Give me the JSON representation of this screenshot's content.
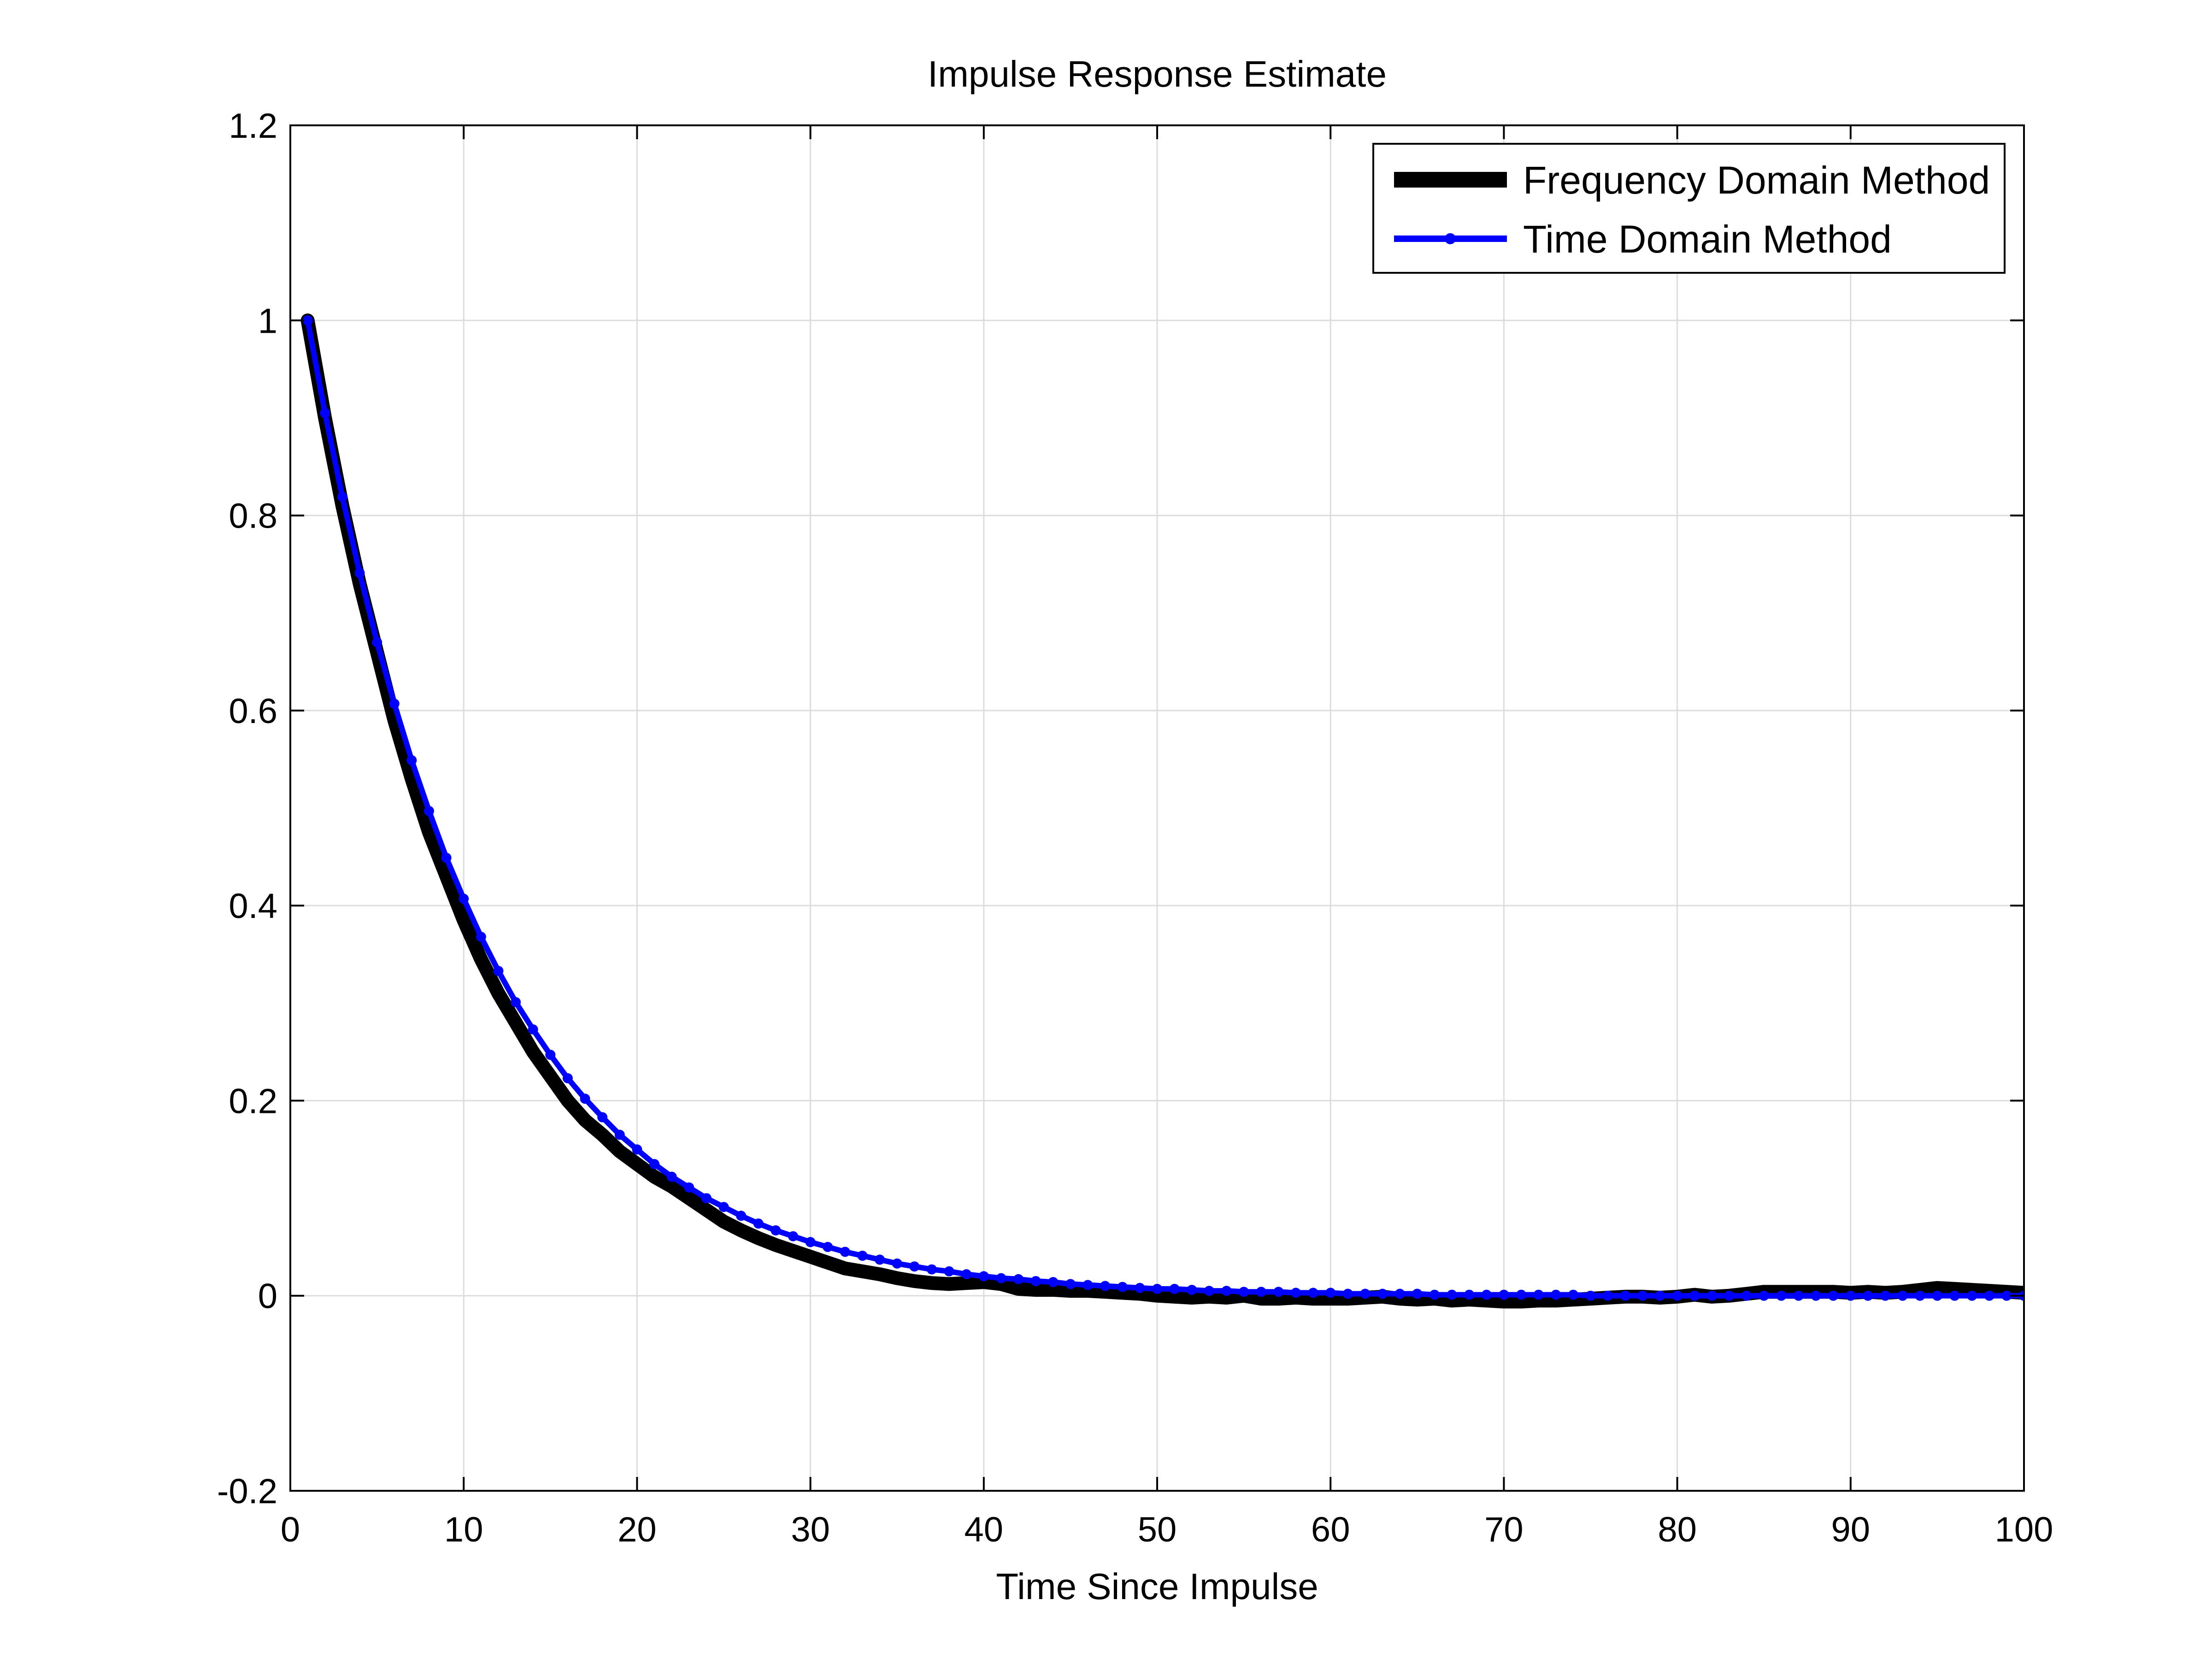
{
  "chart_data": {
    "type": "line",
    "title": "Impulse Response Estimate",
    "xlabel": "Time Since Impulse",
    "ylabel": "",
    "xlim": [
      0,
      100
    ],
    "ylim": [
      -0.2,
      1.2
    ],
    "xticks": [
      0,
      10,
      20,
      30,
      40,
      50,
      60,
      70,
      80,
      90,
      100
    ],
    "yticks": [
      -0.2,
      0,
      0.2,
      0.4,
      0.6,
      0.8,
      1,
      1.2
    ],
    "xtick_labels": [
      "0",
      "10",
      "20",
      "30",
      "40",
      "50",
      "60",
      "70",
      "80",
      "90",
      "100"
    ],
    "ytick_labels": [
      "-0.2",
      "0",
      "0.2",
      "0.4",
      "0.6",
      "0.8",
      "1",
      "1.2"
    ],
    "grid": true,
    "legend_position": "top-right",
    "series": [
      {
        "name": "Frequency Domain Method",
        "color": "#000000",
        "style": "thick-line",
        "x": [
          1,
          2,
          3,
          4,
          5,
          6,
          7,
          8,
          9,
          10,
          11,
          12,
          13,
          14,
          15,
          16,
          17,
          18,
          19,
          20,
          21,
          22,
          23,
          24,
          25,
          26,
          27,
          28,
          29,
          30,
          31,
          32,
          33,
          34,
          35,
          36,
          37,
          38,
          39,
          40,
          41,
          42,
          43,
          44,
          45,
          46,
          47,
          48,
          49,
          50,
          51,
          52,
          53,
          54,
          55,
          56,
          57,
          58,
          59,
          60,
          61,
          62,
          63,
          64,
          65,
          66,
          67,
          68,
          69,
          70,
          71,
          72,
          73,
          74,
          75,
          76,
          77,
          78,
          79,
          80,
          81,
          82,
          83,
          84,
          85,
          86,
          87,
          88,
          89,
          90,
          91,
          92,
          93,
          94,
          95,
          96,
          97,
          98,
          99,
          100
        ],
        "y": [
          1.0,
          0.9,
          0.81,
          0.73,
          0.66,
          0.59,
          0.53,
          0.475,
          0.43,
          0.385,
          0.345,
          0.31,
          0.28,
          0.25,
          0.225,
          0.2,
          0.18,
          0.165,
          0.148,
          0.135,
          0.122,
          0.112,
          0.1,
          0.088,
          0.076,
          0.067,
          0.059,
          0.052,
          0.046,
          0.04,
          0.034,
          0.028,
          0.025,
          0.022,
          0.018,
          0.015,
          0.013,
          0.012,
          0.013,
          0.014,
          0.012,
          0.007,
          0.006,
          0.006,
          0.005,
          0.005,
          0.004,
          0.003,
          0.002,
          0.0,
          -0.001,
          -0.002,
          -0.001,
          -0.002,
          0.0,
          -0.003,
          -0.003,
          -0.002,
          -0.003,
          -0.003,
          -0.003,
          -0.002,
          -0.001,
          -0.003,
          -0.004,
          -0.003,
          -0.005,
          -0.004,
          -0.005,
          -0.006,
          -0.006,
          -0.005,
          -0.005,
          -0.004,
          -0.003,
          -0.002,
          -0.001,
          -0.001,
          -0.002,
          -0.001,
          0.001,
          -0.001,
          0.0,
          0.002,
          0.004,
          0.004,
          0.004,
          0.004,
          0.004,
          0.003,
          0.004,
          0.003,
          0.004,
          0.006,
          0.008,
          0.007,
          0.006,
          0.005,
          0.004,
          0.003
        ]
      },
      {
        "name": "Time Domain Method",
        "color": "#0000ff",
        "style": "line-with-dots",
        "x": [
          1,
          2,
          3,
          4,
          5,
          6,
          7,
          8,
          9,
          10,
          11,
          12,
          13,
          14,
          15,
          16,
          17,
          18,
          19,
          20,
          21,
          22,
          23,
          24,
          25,
          26,
          27,
          28,
          29,
          30,
          31,
          32,
          33,
          34,
          35,
          36,
          37,
          38,
          39,
          40,
          41,
          42,
          43,
          44,
          45,
          46,
          47,
          48,
          49,
          50,
          51,
          52,
          53,
          54,
          55,
          56,
          57,
          58,
          59,
          60,
          61,
          62,
          63,
          64,
          65,
          66,
          67,
          68,
          69,
          70,
          71,
          72,
          73,
          74,
          75,
          76,
          77,
          78,
          79,
          80,
          81,
          82,
          83,
          84,
          85,
          86,
          87,
          88,
          89,
          90,
          91,
          92,
          93,
          94,
          95,
          96,
          97,
          98,
          99,
          100
        ],
        "y": [
          1.0,
          0.905,
          0.819,
          0.741,
          0.67,
          0.607,
          0.549,
          0.497,
          0.449,
          0.407,
          0.368,
          0.333,
          0.301,
          0.273,
          0.247,
          0.223,
          0.202,
          0.183,
          0.165,
          0.15,
          0.135,
          0.122,
          0.111,
          0.1,
          0.091,
          0.082,
          0.074,
          0.067,
          0.061,
          0.055,
          0.05,
          0.045,
          0.041,
          0.037,
          0.033,
          0.03,
          0.027,
          0.025,
          0.022,
          0.02,
          0.018,
          0.017,
          0.015,
          0.014,
          0.012,
          0.011,
          0.01,
          0.009,
          0.008,
          0.007,
          0.007,
          0.006,
          0.005,
          0.005,
          0.004,
          0.004,
          0.004,
          0.003,
          0.003,
          0.003,
          0.002,
          0.002,
          0.002,
          0.002,
          0.002,
          0.001,
          0.001,
          0.001,
          0.001,
          0.001,
          0.001,
          0.001,
          0.001,
          0.001,
          0.0,
          0.0,
          0.0,
          0.0,
          0.0,
          0.0,
          0.0,
          0.0,
          0.0,
          0.0,
          0.0,
          0.0,
          0.0,
          0.0,
          0.0,
          0.0,
          0.0,
          0.0,
          0.0,
          0.0,
          0.0,
          0.0,
          0.0,
          0.0,
          0.0,
          0.0
        ]
      }
    ]
  }
}
